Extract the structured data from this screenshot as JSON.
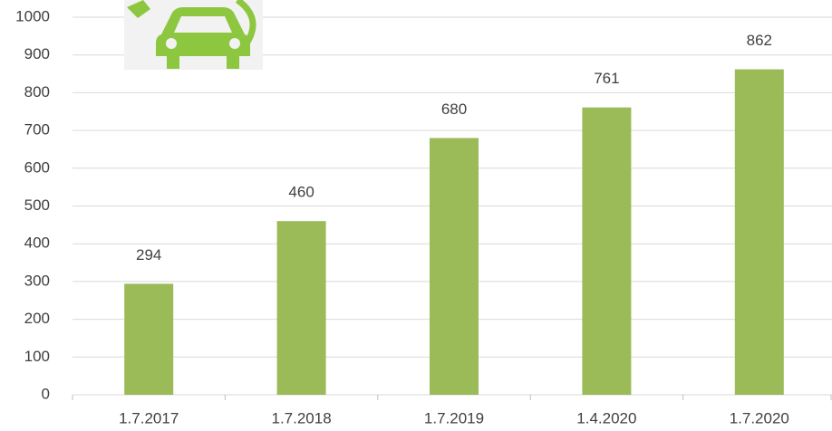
{
  "chart_data": {
    "type": "bar",
    "categories": [
      "1.7.2017",
      "1.7.2018",
      "1.7.2019",
      "1.4.2020",
      "1.7.2020"
    ],
    "values": [
      294,
      460,
      680,
      761,
      862
    ],
    "color": "#9bbb59",
    "ylim": [
      0,
      1000
    ],
    "yticks": [
      0,
      100,
      200,
      300,
      400,
      500,
      600,
      700,
      800,
      900,
      1000
    ],
    "grid": true
  }
}
